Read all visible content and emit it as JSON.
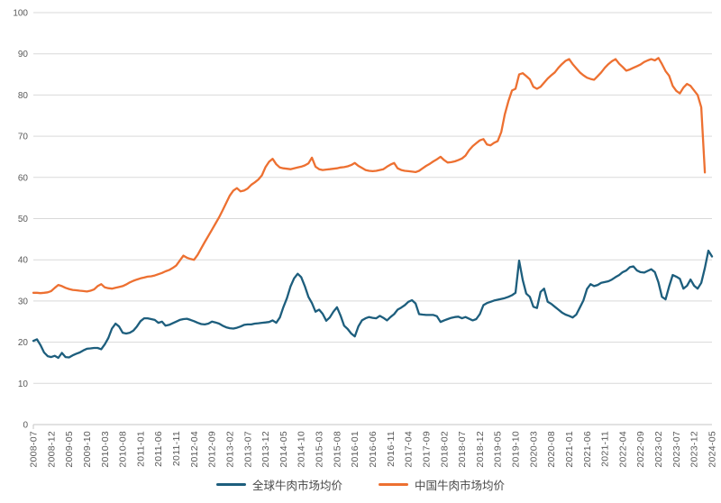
{
  "chart_data": {
    "type": "line",
    "n_points": 191,
    "tick_every": 5,
    "x_tick_labels": [
      "2008-07",
      "2008-12",
      "2009-05",
      "2009-10",
      "2010-03",
      "2010-08",
      "2011-01",
      "2011-06",
      "2011-11",
      "2012-04",
      "2012-09",
      "2013-02",
      "2013-07",
      "2013-12",
      "2014-05",
      "2014-10",
      "2015-03",
      "2015-08",
      "2016-01",
      "2016-06",
      "2016-11",
      "2017-04",
      "2017-09",
      "2018-02",
      "2018-07",
      "2018-12",
      "2019-05",
      "2019-10",
      "2020-03",
      "2020-08",
      "2021-01",
      "2021-06",
      "2021-11",
      "2022-04",
      "2022-09",
      "2023-02",
      "2023-07",
      "2023-12",
      "2024-05"
    ],
    "y_ticks": [
      0,
      10,
      20,
      30,
      40,
      50,
      60,
      70,
      80,
      90,
      100
    ],
    "ylim": [
      0,
      100
    ],
    "grid": "horizontal",
    "legend_position": "bottom-center",
    "colors": {
      "grid": "#d9d9d9",
      "axis": "#c6c6c6",
      "tick_text": "#595959"
    },
    "series": [
      {
        "name": "全球牛肉市场均价",
        "color": "#1d5e7d",
        "values": [
          20.3,
          20.7,
          19.3,
          17.5,
          16.6,
          16.4,
          16.7,
          16.2,
          17.4,
          16.4,
          16.3,
          16.8,
          17.2,
          17.5,
          18.0,
          18.4,
          18.5,
          18.6,
          18.6,
          18.3,
          19.5,
          21.0,
          23.3,
          24.5,
          23.8,
          22.3,
          22.1,
          22.3,
          22.8,
          23.8,
          25.1,
          25.8,
          25.8,
          25.6,
          25.4,
          24.7,
          25.0,
          24.0,
          24.2,
          24.6,
          25.0,
          25.4,
          25.6,
          25.7,
          25.4,
          25.1,
          24.7,
          24.4,
          24.3,
          24.5,
          25.0,
          24.8,
          24.5,
          24.0,
          23.6,
          23.4,
          23.3,
          23.5,
          23.8,
          24.2,
          24.3,
          24.3,
          24.5,
          24.6,
          24.7,
          24.8,
          24.9,
          25.3,
          24.7,
          26.0,
          28.5,
          30.7,
          33.5,
          35.5,
          36.6,
          35.8,
          33.6,
          31.0,
          29.5,
          27.4,
          27.9,
          26.9,
          25.2,
          26.0,
          27.4,
          28.5,
          26.5,
          24.0,
          23.2,
          22.1,
          21.4,
          23.8,
          25.3,
          25.8,
          26.1,
          25.9,
          25.8,
          26.4,
          25.9,
          25.3,
          26.1,
          26.8,
          27.9,
          28.4,
          29.0,
          29.8,
          30.2,
          29.4,
          26.8,
          26.7,
          26.6,
          26.6,
          26.6,
          26.3,
          24.9,
          25.3,
          25.6,
          25.9,
          26.1,
          26.2,
          25.8,
          26.1,
          25.7,
          25.3,
          25.6,
          26.8,
          29.0,
          29.5,
          29.8,
          30.1,
          30.3,
          30.5,
          30.7,
          31.0,
          31.4,
          32.0,
          39.8,
          35.1,
          31.8,
          31.0,
          28.6,
          28.3,
          32.2,
          33.0,
          29.8,
          29.3,
          28.6,
          27.9,
          27.2,
          26.7,
          26.4,
          26.0,
          26.7,
          28.4,
          30.1,
          32.9,
          34.1,
          33.6,
          33.9,
          34.4,
          34.6,
          34.8,
          35.2,
          35.8,
          36.3,
          37.0,
          37.4,
          38.2,
          38.4,
          37.4,
          37.0,
          36.9,
          37.3,
          37.7,
          37.0,
          34.5,
          31.0,
          30.4,
          33.5,
          36.3,
          35.9,
          35.4,
          33.0,
          33.7,
          35.2,
          33.7,
          33.0,
          34.4,
          38.0,
          42.2,
          40.8
        ]
      },
      {
        "name": "中国牛肉市场均价",
        "color": "#ed7031",
        "values": [
          32.0,
          32.0,
          31.9,
          32.0,
          32.1,
          32.4,
          33.2,
          33.9,
          33.6,
          33.2,
          32.9,
          32.7,
          32.6,
          32.5,
          32.4,
          32.3,
          32.5,
          32.8,
          33.6,
          34.1,
          33.3,
          33.1,
          33.0,
          33.2,
          33.4,
          33.6,
          34.0,
          34.5,
          34.9,
          35.2,
          35.5,
          35.7,
          35.9,
          36.0,
          36.2,
          36.5,
          36.8,
          37.2,
          37.5,
          38.0,
          38.6,
          39.8,
          41.0,
          40.5,
          40.2,
          40.0,
          41.2,
          42.8,
          44.3,
          45.8,
          47.3,
          48.8,
          50.3,
          52.0,
          53.8,
          55.6,
          56.8,
          57.4,
          56.6,
          56.8,
          57.3,
          58.2,
          58.8,
          59.5,
          60.5,
          62.5,
          63.8,
          64.5,
          63.2,
          62.4,
          62.2,
          62.1,
          62.0,
          62.2,
          62.4,
          62.6,
          62.9,
          63.4,
          64.8,
          62.6,
          62.0,
          61.8,
          61.9,
          62.0,
          62.1,
          62.2,
          62.4,
          62.5,
          62.7,
          63.0,
          63.5,
          62.8,
          62.3,
          61.8,
          61.6,
          61.5,
          61.6,
          61.8,
          62.0,
          62.6,
          63.1,
          63.5,
          62.2,
          61.8,
          61.6,
          61.5,
          61.4,
          61.3,
          61.6,
          62.2,
          62.8,
          63.3,
          63.9,
          64.4,
          65.0,
          64.2,
          63.6,
          63.7,
          63.9,
          64.2,
          64.6,
          65.3,
          66.6,
          67.6,
          68.3,
          69.0,
          69.3,
          68.0,
          67.8,
          68.4,
          68.8,
          71.0,
          75.3,
          78.5,
          81.1,
          81.5,
          85.0,
          85.3,
          84.6,
          83.8,
          82.0,
          81.5,
          82.0,
          83.0,
          84.0,
          84.8,
          85.5,
          86.6,
          87.5,
          88.3,
          88.7,
          87.5,
          86.5,
          85.5,
          84.8,
          84.2,
          83.9,
          83.7,
          84.6,
          85.5,
          86.6,
          87.5,
          88.2,
          88.7,
          87.6,
          86.8,
          85.9,
          86.2,
          86.6,
          87.0,
          87.4,
          88.0,
          88.4,
          88.7,
          88.4,
          89.0,
          87.5,
          85.8,
          84.7,
          82.2,
          81.0,
          80.4,
          81.8,
          82.7,
          82.2,
          81.1,
          80.0,
          77.0,
          61.2,
          null,
          null
        ]
      }
    ]
  }
}
